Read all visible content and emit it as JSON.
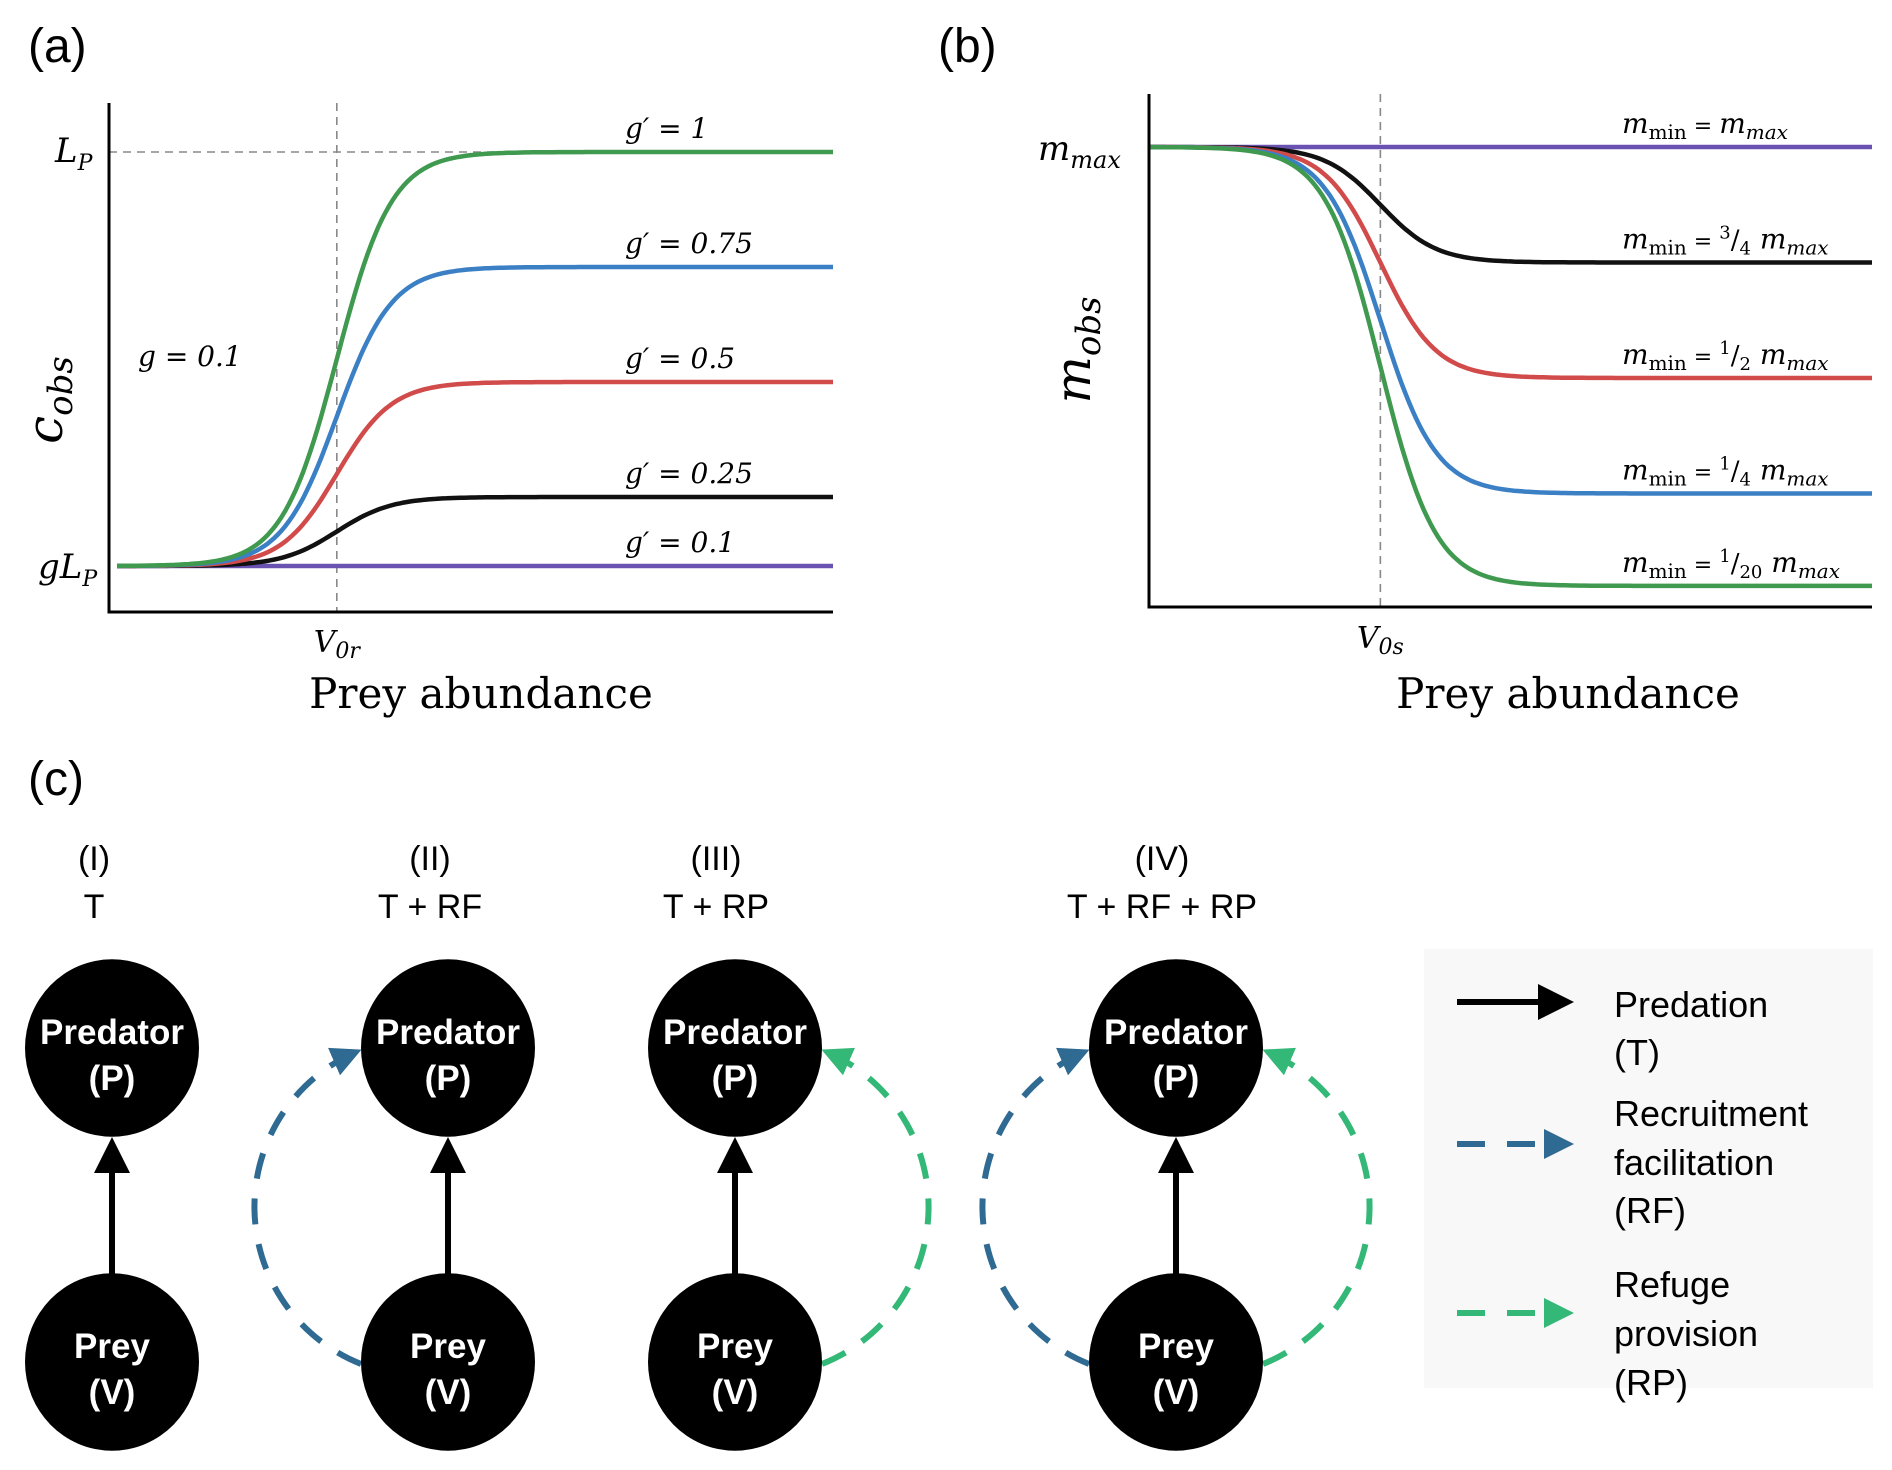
{
  "panel_labels": {
    "a": "(a)",
    "b": "(b)",
    "c": "(c)"
  },
  "chart_data": [
    {
      "type": "line",
      "panel": "(a)",
      "xlabel": "Prey abundance",
      "ylabel": "c",
      "ylabel_sub": "obs",
      "x_range": [
        0,
        10
      ],
      "ylim": [
        0,
        1
      ],
      "x_marker": {
        "label": "V",
        "label_sub": "0r",
        "value": 3.07
      },
      "y_ticks": [
        {
          "label": "L",
          "label_sub": "P",
          "value": 1.0
        },
        {
          "label": "gL",
          "label_sub": "P",
          "value": 0.1
        }
      ],
      "annotation": "g = 0.1",
      "g": 0.1,
      "steepness": 2.6,
      "series": [
        {
          "name": "g′ = 1",
          "plateau": 1.0,
          "color": "#3f9a4f"
        },
        {
          "name": "g′ = 0.75",
          "plateau": 0.75,
          "color": "#3b7fc4"
        },
        {
          "name": "g′ = 0.5",
          "plateau": 0.5,
          "color": "#d24b4b"
        },
        {
          "name": "g′ = 0.25",
          "plateau": 0.25,
          "color": "#111111"
        },
        {
          "name": "g′ = 0.1",
          "plateau": 0.1,
          "color": "#6a52b3"
        }
      ]
    },
    {
      "type": "line",
      "panel": "(b)",
      "xlabel": "Prey abundance",
      "ylabel": "m",
      "ylabel_sub": "obs",
      "x_range": [
        0,
        10
      ],
      "ylim": [
        0,
        1
      ],
      "x_marker": {
        "label": "V",
        "label_sub": "0s",
        "value": 3.2
      },
      "y_ticks": [
        {
          "label": "m",
          "label_sub": "max",
          "value": 1.0
        }
      ],
      "steepness": 2.6,
      "series": [
        {
          "name": "m_min = m_max",
          "lhs": "m",
          "lhs_sub": "min",
          "eq": " = ",
          "num": "",
          "den": "",
          "rhs": "m",
          "rhs_sub": "max",
          "plateau": 1.0,
          "color": "#6a52b3"
        },
        {
          "name": "m_min = 3/4 m_max",
          "lhs": "m",
          "lhs_sub": "min",
          "eq": " = ",
          "num": "3",
          "den": "4",
          "rhs": "m",
          "rhs_sub": "max",
          "plateau": 0.75,
          "color": "#111111"
        },
        {
          "name": "m_min = 1/2 m_max",
          "lhs": "m",
          "lhs_sub": "min",
          "eq": " = ",
          "num": "1",
          "den": "2",
          "rhs": "m",
          "rhs_sub": "max",
          "plateau": 0.5,
          "color": "#d24b4b"
        },
        {
          "name": "m_min = 1/4 m_max",
          "lhs": "m",
          "lhs_sub": "min",
          "eq": " = ",
          "num": "1",
          "den": "4",
          "rhs": "m",
          "rhs_sub": "max",
          "plateau": 0.25,
          "color": "#3b7fc4"
        },
        {
          "name": "m_min = 1/20 m_max",
          "lhs": "m",
          "lhs_sub": "min",
          "eq": " = ",
          "num": "1",
          "den": "20",
          "rhs": "m",
          "rhs_sub": "max",
          "plateau": 0.05,
          "color": "#3f9a4f"
        }
      ]
    }
  ],
  "diagram": {
    "colors": {
      "predation": "#000000",
      "rf": "#2e6a92",
      "rp": "#33b878"
    },
    "nodes": {
      "predator": [
        "Predator",
        "(P)"
      ],
      "prey": [
        "Prey",
        "(V)"
      ]
    },
    "scenarios": [
      {
        "id": "(I)",
        "title": "T",
        "rf": false,
        "rp": false
      },
      {
        "id": "(II)",
        "title": "T + RF",
        "rf": true,
        "rp": false
      },
      {
        "id": "(III)",
        "title": "T + RP",
        "rf": false,
        "rp": true
      },
      {
        "id": "(IV)",
        "title": "T + RF + RP",
        "rf": true,
        "rp": true
      }
    ],
    "legend": [
      {
        "key": "predation",
        "lines": [
          "Predation",
          "(T)"
        ]
      },
      {
        "key": "rf",
        "lines": [
          "Recruitment",
          "facilitation",
          "(RF)"
        ]
      },
      {
        "key": "rp",
        "lines": [
          "Refuge",
          "provision",
          "(RP)"
        ]
      }
    ]
  }
}
